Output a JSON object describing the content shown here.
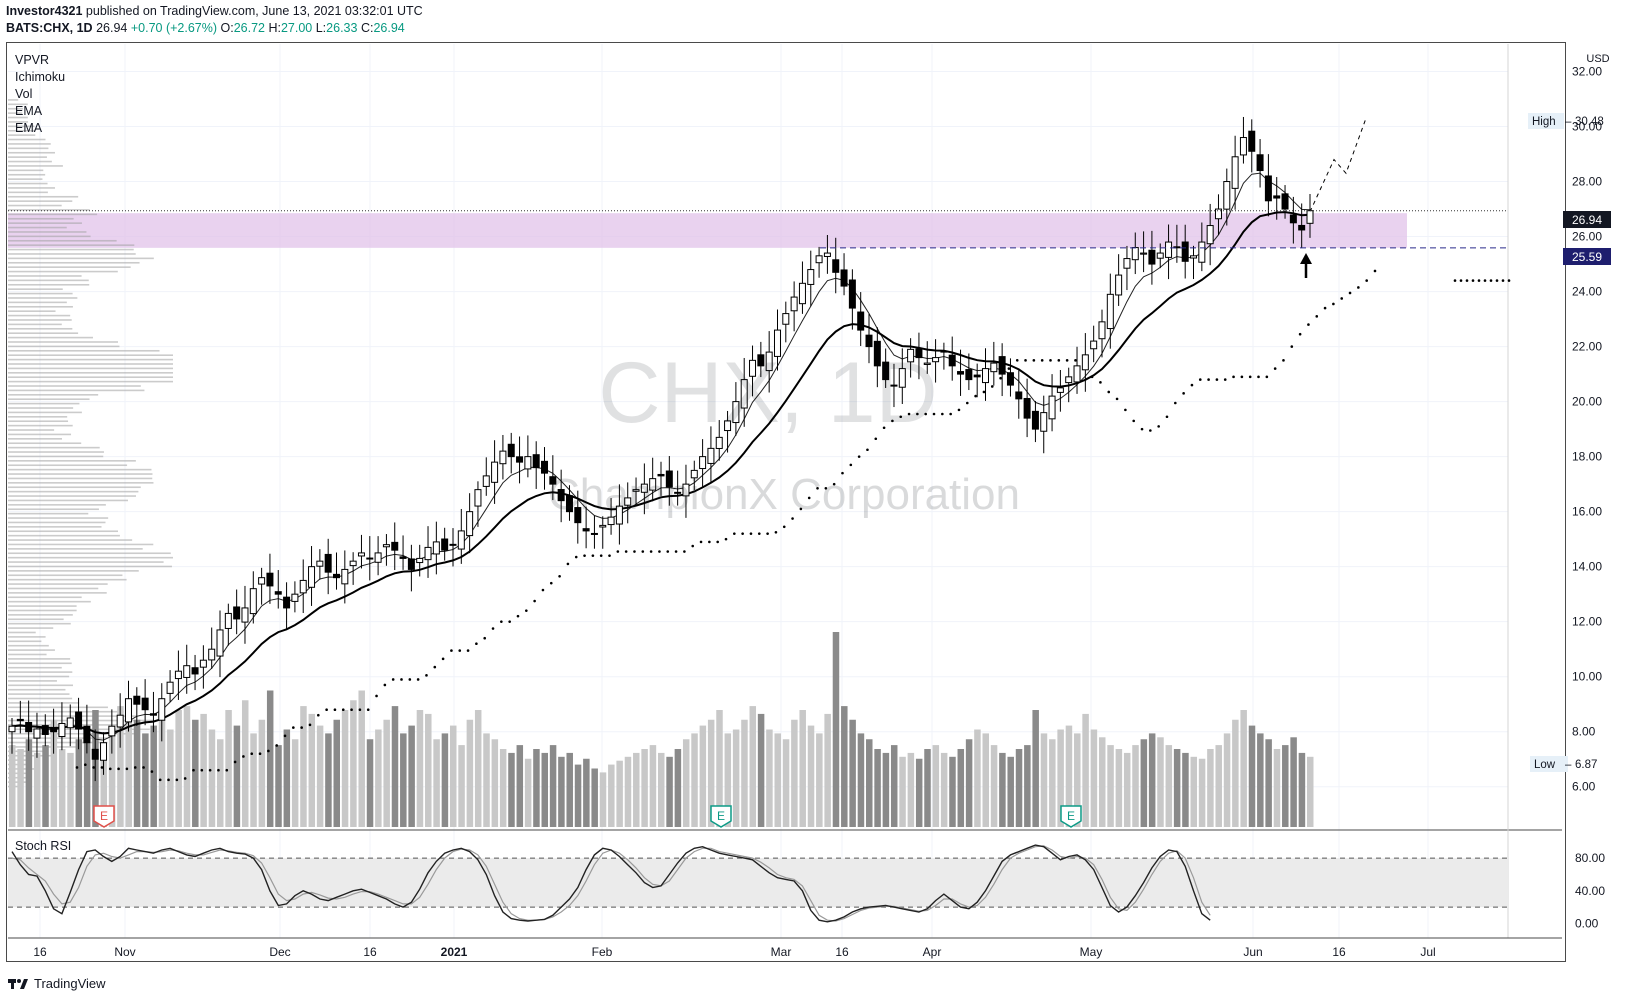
{
  "header": {
    "line1_author": "Investor4321",
    "line1_rest": " published on TradingView.com, June 13, 2021 03:32:01 UTC",
    "symbol": "BATS:CHX, 1D",
    "price": "26.94",
    "change": "+0.70 (+2.67%)",
    "o_label": "O:",
    "o_value": "26.72",
    "h_label": "H:",
    "h_value": "27.00",
    "l_label": "L:",
    "l_value": "26.33",
    "c_label": "C:",
    "c_value": "26.94"
  },
  "indicators": [
    "VPVR",
    "Ichimoku",
    "Vol",
    "EMA",
    "EMA"
  ],
  "watermark": {
    "ticker": "CHX, 1D",
    "name": "ChampionX Corporation"
  },
  "currency": "USD",
  "badges": {
    "high_label": "High",
    "high_value": "30.48",
    "low_label": "Low",
    "low_value": "6.87",
    "last_price": "26.94",
    "level_price": "25.59"
  },
  "earnings_marker": "E",
  "stoch_label": "Stoch RSI",
  "footer_brand": "TradingView",
  "colors": {
    "up_candle": "#ffffff",
    "down_candle": "#000000",
    "zone": "#e1c3ea",
    "level_line": "#2a2a8a",
    "price_badge": "#131722",
    "level_badge": "#1e1e6e",
    "earnings_red": "#e0504a",
    "earnings_green": "#0c9a86",
    "stoch_band": "#ebebeb"
  },
  "chart_data": [
    {
      "type": "candlestick",
      "title": "BATS:CHX, 1D",
      "y_axis_ticks": [
        "32.00",
        "30.00",
        "28.00",
        "26.00",
        "24.00",
        "22.00",
        "20.00",
        "18.00",
        "16.00",
        "14.00",
        "12.00",
        "10.00",
        "8.00",
        "6.00"
      ],
      "ylim": [
        4.5,
        33.0
      ],
      "x_axis_ticks": [
        "16",
        "Nov",
        "Dec",
        "16",
        "2021",
        "Feb",
        "Mar",
        "16",
        "Apr",
        "May",
        "Jun",
        "16",
        "Jul"
      ],
      "close_series": [
        8.2,
        8.4,
        8.0,
        8.1,
        7.9,
        8.0,
        8.3,
        8.5,
        8.1,
        7.6,
        7.0,
        7.6,
        8.2,
        8.6,
        9.2,
        9.0,
        8.8,
        8.6,
        9.2,
        9.8,
        10.2,
        10.4,
        10.1,
        10.6,
        11.0,
        11.7,
        12.3,
        12.1,
        12.5,
        13.2,
        13.6,
        13.3,
        13.0,
        12.5,
        13.0,
        13.5,
        14.0,
        14.2,
        13.8,
        13.6,
        13.9,
        14.2,
        14.5,
        14.3,
        14.5,
        14.8,
        14.6,
        14.3,
        13.9,
        14.3,
        14.7,
        14.9,
        14.6,
        14.8,
        15.3,
        16.0,
        16.8,
        17.3,
        17.8,
        18.2,
        18.0,
        17.8,
        18.0,
        17.6,
        17.4,
        17.0,
        16.4,
        16.0,
        15.6,
        15.3,
        15.2,
        15.5,
        15.8,
        16.2,
        16.5,
        16.8,
        17.0,
        17.2,
        17.3,
        16.9,
        16.7,
        17.0,
        17.5,
        18.0,
        18.3,
        18.7,
        19.3,
        20.0,
        20.8,
        21.5,
        21.3,
        21.8,
        22.6,
        23.2,
        23.8,
        24.3,
        24.8,
        25.3,
        25.4,
        24.7,
        24.2,
        23.4,
        22.6,
        22.0,
        21.3,
        20.8,
        20.6,
        21.2,
        21.9,
        21.6,
        21.4,
        21.6,
        21.8,
        21.3,
        21.0,
        20.8,
        20.9,
        21.2,
        21.4,
        21.0,
        20.6,
        20.1,
        19.4,
        19.0,
        19.6,
        20.2,
        20.5,
        20.9,
        21.3,
        21.7,
        22.2,
        22.9,
        23.9,
        24.6,
        25.2,
        25.6,
        25.4,
        25.0,
        25.4,
        25.8,
        25.6,
        25.1,
        25.3,
        25.8,
        26.4,
        27.0,
        28.0,
        28.9,
        29.6,
        29.1,
        28.4,
        27.3,
        27.4,
        27.0,
        26.5,
        26.24,
        26.94
      ],
      "ema_fast_end": 26.9,
      "ema_slow_end": 26.3,
      "resistance_level": 25.59,
      "zone": [
        25.59,
        26.85
      ],
      "high_marker": 30.48,
      "low_marker": 6.87,
      "last_price": 26.94
    },
    {
      "type": "line",
      "title": "Stoch RSI",
      "y_axis_ticks": [
        "80.00",
        "40.00",
        "0.00"
      ],
      "ylim": [
        -8,
        112
      ],
      "band": [
        20,
        80
      ],
      "k_values": [
        88,
        72,
        60,
        58,
        40,
        18,
        12,
        38,
        66,
        88,
        90,
        82,
        76,
        82,
        92,
        90,
        88,
        86,
        90,
        92,
        88,
        84,
        82,
        86,
        90,
        92,
        88,
        86,
        85,
        80,
        66,
        40,
        22,
        24,
        34,
        40,
        36,
        30,
        28,
        32,
        36,
        40,
        42,
        38,
        34,
        30,
        24,
        20,
        26,
        42,
        62,
        76,
        86,
        90,
        92,
        88,
        78,
        60,
        34,
        14,
        6,
        4,
        3,
        4,
        5,
        10,
        20,
        30,
        44,
        66,
        84,
        92,
        90,
        82,
        72,
        62,
        50,
        44,
        46,
        60,
        74,
        86,
        92,
        94,
        90,
        86,
        84,
        82,
        80,
        78,
        70,
        62,
        56,
        54,
        52,
        40,
        16,
        4,
        2,
        4,
        8,
        14,
        18,
        20,
        21,
        22,
        20,
        18,
        16,
        14,
        18,
        28,
        36,
        28,
        20,
        18,
        26,
        40,
        58,
        76,
        84,
        88,
        92,
        96,
        94,
        86,
        78,
        82,
        84,
        78,
        66,
        44,
        22,
        14,
        20,
        34,
        50,
        68,
        82,
        90,
        88,
        70,
        40,
        12,
        4
      ],
      "d_values": [
        80,
        78,
        68,
        60,
        52,
        36,
        24,
        26,
        44,
        70,
        84,
        86,
        82,
        80,
        84,
        88,
        88,
        87,
        88,
        90,
        89,
        86,
        84,
        84,
        87,
        90,
        89,
        87,
        86,
        83,
        74,
        56,
        36,
        28,
        30,
        36,
        38,
        35,
        31,
        30,
        32,
        36,
        39,
        39,
        36,
        32,
        28,
        24,
        24,
        32,
        48,
        66,
        80,
        88,
        91,
        90,
        84,
        70,
        48,
        26,
        12,
        6,
        4,
        4,
        5,
        8,
        14,
        22,
        34,
        52,
        72,
        86,
        90,
        86,
        78,
        68,
        56,
        48,
        46,
        52,
        66,
        80,
        88,
        92,
        92,
        88,
        86,
        84,
        82,
        80,
        75,
        68,
        60,
        56,
        54,
        46,
        28,
        10,
        4,
        3,
        6,
        11,
        16,
        19,
        20,
        21,
        21,
        19,
        17,
        15,
        16,
        22,
        30,
        30,
        24,
        20,
        22,
        32,
        48,
        66,
        80,
        86,
        90,
        94,
        95,
        90,
        82,
        80,
        82,
        80,
        72,
        54,
        32,
        18,
        16,
        26,
        42,
        60,
        76,
        86,
        89,
        80,
        56,
        26,
        10
      ]
    },
    {
      "type": "bar",
      "title": "Vol",
      "values": [
        42,
        40,
        45,
        38,
        42,
        55,
        40,
        38,
        45,
        48,
        60,
        40,
        50,
        62,
        58,
        55,
        48,
        52,
        55,
        50,
        60,
        62,
        55,
        58,
        50,
        45,
        60,
        52,
        65,
        48,
        55,
        70,
        42,
        50,
        45,
        62,
        58,
        52,
        48,
        55,
        60,
        65,
        70,
        45,
        50,
        55,
        62,
        48,
        52,
        60,
        58,
        45,
        48,
        52,
        42,
        55,
        60,
        48,
        45,
        40,
        38,
        42,
        35,
        40,
        38,
        42,
        36,
        38,
        32,
        35,
        30,
        28,
        32,
        34,
        36,
        38,
        40,
        42,
        38,
        36,
        40,
        45,
        48,
        52,
        55,
        60,
        48,
        50,
        55,
        62,
        58,
        50,
        48,
        45,
        55,
        60,
        52,
        48,
        58,
        100,
        62,
        55,
        48,
        45,
        40,
        38,
        42,
        36,
        38,
        35,
        40,
        42,
        38,
        36,
        40,
        45,
        50,
        48,
        42,
        38,
        36,
        40,
        42,
        60,
        48,
        45,
        50,
        52,
        48,
        58,
        50,
        46,
        42,
        40,
        38,
        42,
        45,
        48,
        46,
        42,
        40,
        38,
        36,
        35,
        40,
        42,
        48,
        55,
        60,
        52,
        48,
        45,
        40,
        42,
        46,
        38,
        36
      ]
    }
  ]
}
